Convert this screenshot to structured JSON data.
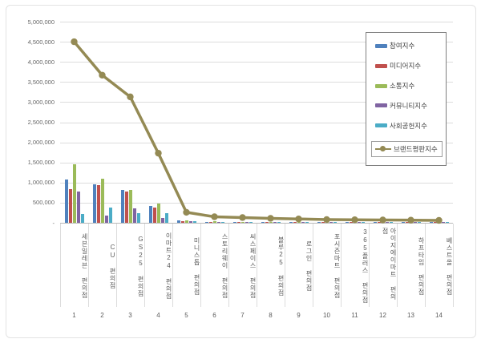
{
  "chart_data": {
    "type": "bar",
    "title": "",
    "xlabel": "",
    "ylabel": "",
    "categories": [
      "세븐일레븐 편의점",
      "CU 편의점",
      "GS25 편의점",
      "이마트24 편의점",
      "미니스톱 편의점",
      "스토리웨이 편의점",
      "씨스페이스 편의점",
      "블루25 편의점",
      "로그인 편의점",
      "포시즌마트 편의점",
      "365플러스 편의점",
      "아이지에이마트 편의점",
      "하프타임 편의점",
      "베스트올 편의점"
    ],
    "category_index_labels": [
      "1",
      "2",
      "3",
      "4",
      "5",
      "6",
      "7",
      "8",
      "9",
      "10",
      "11",
      "12",
      "13",
      "14"
    ],
    "series": [
      {
        "name": "참여지수",
        "type": "bar",
        "color": "#4F81BD",
        "values": [
          1070000,
          955000,
          810000,
          424000,
          50000,
          22000,
          25000,
          15000,
          12000,
          11000,
          10000,
          10000,
          9000,
          8000
        ]
      },
      {
        "name": "미디어지수",
        "type": "bar",
        "color": "#C0504D",
        "values": [
          840000,
          935000,
          780000,
          372000,
          48000,
          28000,
          24000,
          16000,
          13000,
          12000,
          11000,
          10000,
          9000,
          9000
        ]
      },
      {
        "name": "소통지수",
        "type": "bar",
        "color": "#9BBB59",
        "values": [
          1450000,
          1105000,
          820000,
          471000,
          58000,
          32000,
          27000,
          18000,
          15000,
          13000,
          12000,
          11000,
          10000,
          9000
        ]
      },
      {
        "name": "커뮤니티지수",
        "type": "bar",
        "color": "#8064A2",
        "values": [
          770000,
          180000,
          358000,
          113000,
          42000,
          18000,
          20000,
          12000,
          10000,
          9000,
          9000,
          8000,
          8000,
          7000
        ]
      },
      {
        "name": "사회공헌지수",
        "type": "bar",
        "color": "#4BACC6",
        "values": [
          225000,
          378000,
          245000,
          245000,
          38000,
          14000,
          17000,
          11000,
          9000,
          8000,
          8000,
          8000,
          7000,
          7000
        ]
      },
      {
        "name": "브랜드평판지수",
        "type": "line",
        "color": "#948A54",
        "values": [
          4500000,
          3670000,
          3130000,
          1730000,
          260000,
          150000,
          130000,
          110000,
          95000,
          80000,
          75000,
          70000,
          65000,
          60000
        ],
        "legend_boxed": true
      }
    ],
    "yaxis": {
      "min": 0,
      "max": 5000000,
      "step": 500000,
      "tick_labels": [
        "5,000,000",
        "4,500,000",
        "4,000,000",
        "3,500,000",
        "3,000,000",
        "2,500,000",
        "2,000,000",
        "1,500,000",
        "1,000,000",
        "500,000",
        "-"
      ]
    },
    "legend": {
      "position": "top-right",
      "border": true
    },
    "grid": true
  },
  "colors": {
    "gridline": "#dcdcdc",
    "axis_line": "#b9b9b9",
    "tick_text": "#6a6a6a",
    "label_text": "#5a5a5a",
    "legend_border": "#7f7f7f",
    "frame_border": "#e2e2e2"
  }
}
